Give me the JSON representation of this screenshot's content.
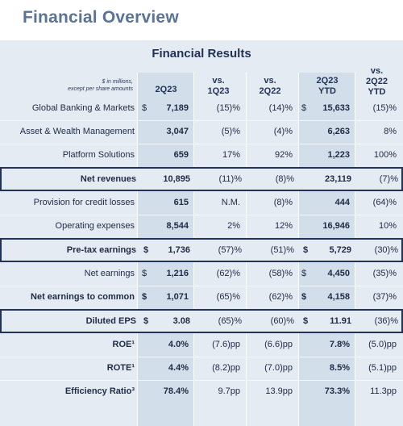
{
  "page_title": "Financial Overview",
  "table_title": "Financial Results",
  "header": {
    "note_line1": "$ in millions,",
    "note_line2": "except per share amounts",
    "col_2q23": "2Q23",
    "col_vs1q23_a": "vs.",
    "col_vs1q23_b": "1Q23",
    "col_vs2q22_a": "vs.",
    "col_vs2q22_b": "2Q22",
    "col_ytd_a": "2Q23",
    "col_ytd_b": "YTD",
    "col_vsytd_a": "vs.",
    "col_vsytd_b": "2Q22",
    "col_vsytd_c": "YTD"
  },
  "rows": [
    {
      "label": "Global Banking & Markets",
      "cur1": "$",
      "v2q23": "7,189",
      "v1q23": "(15)%",
      "v2q22": "(14)%",
      "cur2": "$",
      "ytd": "15,633",
      "vsytd": "(15)%"
    },
    {
      "label": "Asset & Wealth Management",
      "cur1": "",
      "v2q23": "3,047",
      "v1q23": "(5)%",
      "v2q22": "(4)%",
      "cur2": "",
      "ytd": "6,263",
      "vsytd": "8%"
    },
    {
      "label": "Platform Solutions",
      "cur1": "",
      "v2q23": "659",
      "v1q23": "17%",
      "v2q22": "92%",
      "cur2": "",
      "ytd": "1,223",
      "vsytd": "100%"
    },
    {
      "label": "Net revenues",
      "cur1": "",
      "v2q23": "10,895",
      "v1q23": "(11)%",
      "v2q22": "(8)%",
      "cur2": "",
      "ytd": "23,119",
      "vsytd": "(7)%"
    },
    {
      "label": "Provision for credit losses",
      "cur1": "",
      "v2q23": "615",
      "v1q23": "N.M.",
      "v2q22": "(8)%",
      "cur2": "",
      "ytd": "444",
      "vsytd": "(64)%"
    },
    {
      "label": "Operating expenses",
      "cur1": "",
      "v2q23": "8,544",
      "v1q23": "2%",
      "v2q22": "12%",
      "cur2": "",
      "ytd": "16,946",
      "vsytd": "10%"
    },
    {
      "label": "Pre-tax earnings",
      "cur1": "$",
      "v2q23": "1,736",
      "v1q23": "(57)%",
      "v2q22": "(51)%",
      "cur2": "$",
      "ytd": "5,729",
      "vsytd": "(30)%"
    },
    {
      "label": "Net earnings",
      "cur1": "$",
      "v2q23": "1,216",
      "v1q23": "(62)%",
      "v2q22": "(58)%",
      "cur2": "$",
      "ytd": "4,450",
      "vsytd": "(35)%"
    },
    {
      "label": "Net earnings to common",
      "cur1": "$",
      "v2q23": "1,071",
      "v1q23": "(65)%",
      "v2q22": "(62)%",
      "cur2": "$",
      "ytd": "4,158",
      "vsytd": "(37)%"
    },
    {
      "label": "Diluted EPS",
      "cur1": "$",
      "v2q23": "3.08",
      "v1q23": "(65)%",
      "v2q22": "(60)%",
      "cur2": "$",
      "ytd": "11.91",
      "vsytd": "(36)%"
    },
    {
      "label": "ROE¹",
      "cur1": "",
      "v2q23": "4.0%",
      "v1q23": "(7.6)pp",
      "v2q22": "(6.6)pp",
      "cur2": "",
      "ytd": "7.8%",
      "vsytd": "(5.0)pp"
    },
    {
      "label": "ROTE¹",
      "cur1": "",
      "v2q23": "4.4%",
      "v1q23": "(8.2)pp",
      "v2q22": "(7.0)pp",
      "cur2": "",
      "ytd": "8.5%",
      "vsytd": "(5.1)pp"
    },
    {
      "label": "Efficiency Ratio³",
      "cur1": "",
      "v2q23": "78.4%",
      "v1q23": "9.7pp",
      "v2q22": "13.9pp",
      "cur2": "",
      "ytd": "73.3%",
      "vsytd": "11.3pp"
    }
  ]
}
